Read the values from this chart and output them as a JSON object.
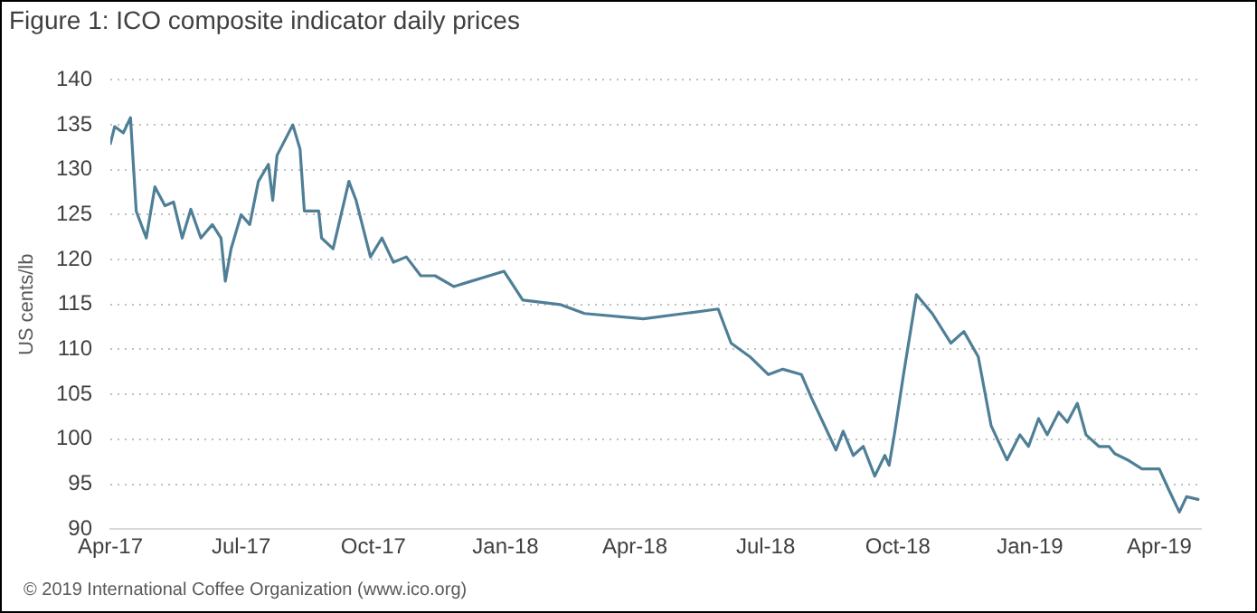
{
  "chart_data": {
    "type": "line",
    "title": "Figure 1: ICO composite indicator daily prices",
    "ylabel": "US cents/lb",
    "annotations": [
      "© 2019 International Coffee Organization (www.ico.org)"
    ],
    "x": [
      "2017-04-01",
      "2017-04-04",
      "2017-04-10",
      "2017-04-15",
      "2017-04-19",
      "2017-04-26",
      "2017-05-02",
      "2017-05-09",
      "2017-05-15",
      "2017-05-21",
      "2017-05-27",
      "2017-06-03",
      "2017-06-11",
      "2017-06-17",
      "2017-06-20",
      "2017-06-24",
      "2017-07-01",
      "2017-07-07",
      "2017-07-13",
      "2017-07-20",
      "2017-07-23",
      "2017-07-26",
      "2017-08-06",
      "2017-08-11",
      "2017-08-14",
      "2017-08-24",
      "2017-08-26",
      "2017-09-03",
      "2017-09-14",
      "2017-09-19",
      "2017-09-29",
      "2017-10-07",
      "2017-10-15",
      "2017-10-24",
      "2017-11-03",
      "2017-11-13",
      "2017-11-26",
      "2017-12-31",
      "2018-01-13",
      "2018-02-08",
      "2018-02-25",
      "2018-04-07",
      "2018-05-29",
      "2018-06-07",
      "2018-06-20",
      "2018-07-03",
      "2018-07-13",
      "2018-07-26",
      "2018-08-02",
      "2018-08-19",
      "2018-08-24",
      "2018-08-31",
      "2018-09-07",
      "2018-09-15",
      "2018-09-22",
      "2018-09-25",
      "2018-09-29",
      "2018-10-05",
      "2018-10-14",
      "2018-10-25",
      "2018-11-07",
      "2018-11-16",
      "2018-11-26",
      "2018-12-05",
      "2018-12-16",
      "2018-12-25",
      "2018-12-31",
      "2019-01-07",
      "2019-01-13",
      "2019-01-21",
      "2019-01-27",
      "2019-02-03",
      "2019-02-09",
      "2019-02-18",
      "2019-02-25",
      "2019-03-01",
      "2019-03-10",
      "2019-03-20",
      "2019-04-01",
      "2019-04-07",
      "2019-04-15",
      "2019-04-20",
      "2019-04-28"
    ],
    "series": [
      {
        "color": "#4f7f96",
        "values": [
          132.9,
          134.8,
          134.1,
          135.8,
          125.4,
          122.4,
          128.1,
          126,
          126.4,
          122.4,
          125.6,
          122.4,
          123.9,
          122.4,
          117.6,
          121.2,
          125,
          123.9,
          128.7,
          130.6,
          126.6,
          131.6,
          135,
          132.3,
          125.4,
          125.4,
          122.4,
          121.2,
          128.7,
          126.6,
          120.3,
          122.4,
          119.7,
          120.3,
          118.2,
          118.2,
          117,
          118.7,
          115.5,
          115,
          114,
          113.4,
          114.5,
          110.7,
          109.2,
          107.2,
          107.8,
          107.2,
          104.6,
          98.8,
          100.9,
          98.2,
          99.2,
          95.9,
          98.2,
          97.1,
          100.9,
          107.2,
          116.1,
          114,
          110.7,
          112,
          109.2,
          101.5,
          97.7,
          100.5,
          99.2,
          102.3,
          100.5,
          103,
          101.9,
          104,
          100.5,
          99.2,
          99.2,
          98.4,
          97.7,
          96.7,
          96.7,
          94.6,
          91.9,
          93.6,
          93.3
        ]
      }
    ],
    "xlim": [
      "2017-04-01",
      "2019-04-30"
    ],
    "xticks": [
      {
        "value": "2017-04-01",
        "label": "Apr-17"
      },
      {
        "value": "2017-07-01",
        "label": "Jul-17"
      },
      {
        "value": "2017-10-01",
        "label": "Oct-17"
      },
      {
        "value": "2018-01-01",
        "label": "Jan-18"
      },
      {
        "value": "2018-04-01",
        "label": "Apr-18"
      },
      {
        "value": "2018-07-01",
        "label": "Jul-18"
      },
      {
        "value": "2018-10-01",
        "label": "Oct-18"
      },
      {
        "value": "2019-01-01",
        "label": "Jan-19"
      },
      {
        "value": "2019-04-01",
        "label": "Apr-19"
      }
    ],
    "ylim": [
      90,
      140
    ],
    "yticks": [
      90,
      95,
      100,
      105,
      110,
      115,
      120,
      125,
      130,
      135,
      140
    ],
    "grid": "y"
  }
}
